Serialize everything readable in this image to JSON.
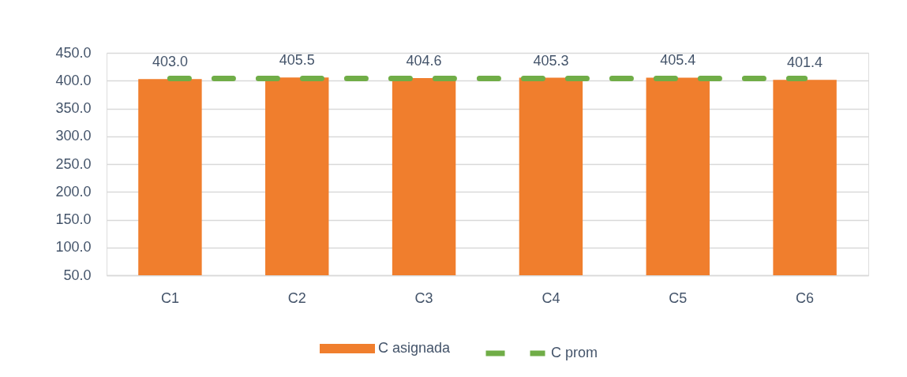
{
  "chart_data": {
    "type": "bar",
    "categories": [
      "C1",
      "C2",
      "C3",
      "C4",
      "C5",
      "C6"
    ],
    "series": [
      {
        "name": "C asignada",
        "color": "#f07e2d",
        "values": [
          403.0,
          405.5,
          404.6,
          405.3,
          405.4,
          401.4
        ],
        "value_labels": [
          "403.0",
          "405.5",
          "404.6",
          "405.3",
          "405.4",
          "401.4"
        ]
      },
      {
        "name": "C prom",
        "type": "line",
        "color": "#70ad47",
        "line_style": "dashed",
        "values": [
          404,
          404,
          404,
          404,
          404,
          404
        ]
      }
    ],
    "ylim": [
      50,
      450
    ],
    "yticks": [
      {
        "value": 50,
        "label": "50.0"
      },
      {
        "value": 100,
        "label": "100.0"
      },
      {
        "value": 150,
        "label": "150.0"
      },
      {
        "value": 200,
        "label": "200.0"
      },
      {
        "value": 250,
        "label": "250.0"
      },
      {
        "value": 300,
        "label": "300.0"
      },
      {
        "value": 350,
        "label": "350.0"
      },
      {
        "value": 400,
        "label": "400.0"
      },
      {
        "value": 450,
        "label": "450.0"
      }
    ],
    "grid": "y",
    "legend": "bottom"
  }
}
